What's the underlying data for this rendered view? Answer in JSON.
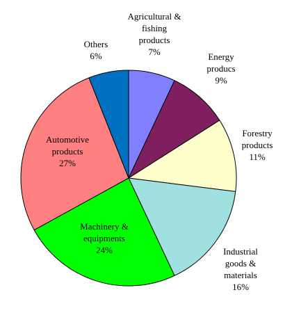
{
  "chart_data": {
    "type": "pie",
    "title": "",
    "start_angle_deg": 0,
    "direction": "clockwise",
    "slices": [
      {
        "label_lines": [
          "Agricultural &",
          "fishing",
          "products"
        ],
        "value": 7,
        "value_label": "7%",
        "color": "#8080ff"
      },
      {
        "label_lines": [
          "Energy",
          "producs"
        ],
        "value": 9,
        "value_label": "9%",
        "color": "#7f1f5f"
      },
      {
        "label_lines": [
          "Forestry",
          "products"
        ],
        "value": 11,
        "value_label": "11%",
        "color": "#ffffcc"
      },
      {
        "label_lines": [
          "Industrial",
          "goods &",
          "materials"
        ],
        "value": 16,
        "value_label": "16%",
        "color": "#a0e0e0"
      },
      {
        "label_lines": [
          "Machinery &",
          "equipments"
        ],
        "value": 24,
        "value_label": "24%",
        "color": "#00ff00"
      },
      {
        "label_lines": [
          "Automotive",
          "products"
        ],
        "value": 27,
        "value_label": "27%",
        "color": "#ff8080"
      },
      {
        "label_lines": [
          "Others"
        ],
        "value": 6,
        "value_label": "6%",
        "color": "#0070c0"
      }
    ]
  }
}
